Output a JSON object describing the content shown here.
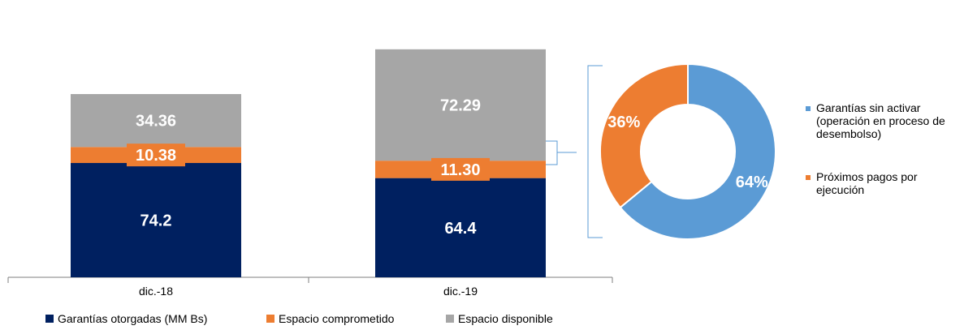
{
  "chart_data": [
    {
      "type": "bar",
      "stacked": true,
      "categories": [
        "dic.-18",
        "dic.-19"
      ],
      "series": [
        {
          "name": "Garantías otorgadas (MM Bs)",
          "values": [
            74.2,
            64.4
          ],
          "labels": [
            "74.2",
            "64.4"
          ],
          "color": "#002060"
        },
        {
          "name": "Espacio comprometido",
          "values": [
            10.38,
            11.3
          ],
          "labels": [
            "10.38",
            "11.30"
          ],
          "color": "#ED7D31"
        },
        {
          "name": "Espacio disponible",
          "values": [
            34.36,
            72.29
          ],
          "labels": [
            "34.36",
            "72.29"
          ],
          "color": "#A6A6A6"
        }
      ],
      "ylim": [
        0,
        150
      ],
      "grid": false,
      "legend": "bottom"
    },
    {
      "type": "pie",
      "donut": true,
      "series": [
        {
          "name": "Garantías sin activar (operación en proceso de desembolso)",
          "value": 64,
          "label": "64%",
          "color": "#5B9BD5",
          "legend_lines": [
            "Garantías sin activar",
            "(operación en proceso de",
            "desembolso)"
          ]
        },
        {
          "name": "Próximos pagos por ejecución",
          "value": 36,
          "label": "36%",
          "color": "#ED7D31",
          "legend_lines": [
            "Próximos pagos por",
            "ejecución"
          ]
        }
      ],
      "legend": "right"
    }
  ]
}
